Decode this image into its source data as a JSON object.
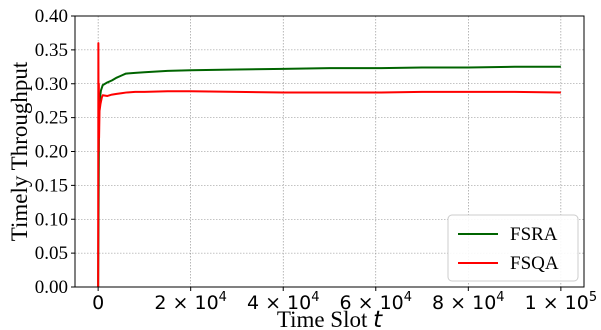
{
  "chart_data": {
    "type": "line",
    "xlabel": "Time Slot",
    "xlabel_var": "t",
    "ylabel": "Timely Throughput",
    "xlim": [
      -5000,
      105000
    ],
    "ylim": [
      0,
      0.4
    ],
    "yticks": [
      "0.00",
      "0.05",
      "0.10",
      "0.15",
      "0.20",
      "0.25",
      "0.30",
      "0.35",
      "0.40"
    ],
    "yticks_values": [
      0,
      0.05,
      0.1,
      0.15,
      0.2,
      0.25,
      0.3,
      0.35,
      0.4
    ],
    "xticks": [
      {
        "value": 0,
        "base": "0",
        "exp": ""
      },
      {
        "value": 20000,
        "base": "2 × 10",
        "exp": "4"
      },
      {
        "value": 40000,
        "base": "4 × 10",
        "exp": "4"
      },
      {
        "value": 60000,
        "base": "6 × 10",
        "exp": "4"
      },
      {
        "value": 80000,
        "base": "8 × 10",
        "exp": "4"
      },
      {
        "value": 100000,
        "base": "1 × 10",
        "exp": "5"
      }
    ],
    "grid": true,
    "legend_position": "bottom-right",
    "series": [
      {
        "name": "FSRA",
        "color": "#006400",
        "x": [
          0,
          200,
          400,
          600,
          1000,
          2000,
          3000,
          4000,
          5000,
          6000,
          8000,
          10000,
          15000,
          20000,
          30000,
          40000,
          50000,
          60000,
          70000,
          80000,
          90000,
          100000
        ],
        "y": [
          0.0,
          0.26,
          0.28,
          0.29,
          0.298,
          0.302,
          0.305,
          0.309,
          0.312,
          0.315,
          0.316,
          0.317,
          0.319,
          0.32,
          0.321,
          0.322,
          0.323,
          0.323,
          0.324,
          0.324,
          0.325,
          0.325
        ]
      },
      {
        "name": "FSQA",
        "color": "#ff0000",
        "x": [
          0,
          50,
          100,
          150,
          200,
          300,
          500,
          800,
          1000,
          2000,
          3000,
          4000,
          5000,
          6000,
          8000,
          10000,
          15000,
          20000,
          30000,
          40000,
          50000,
          60000,
          70000,
          80000,
          90000,
          100000
        ],
        "y": [
          0.0,
          0.36,
          0.2,
          0.3,
          0.22,
          0.26,
          0.27,
          0.28,
          0.283,
          0.282,
          0.284,
          0.285,
          0.286,
          0.287,
          0.288,
          0.288,
          0.289,
          0.289,
          0.288,
          0.287,
          0.287,
          0.287,
          0.288,
          0.288,
          0.288,
          0.287
        ]
      }
    ]
  }
}
